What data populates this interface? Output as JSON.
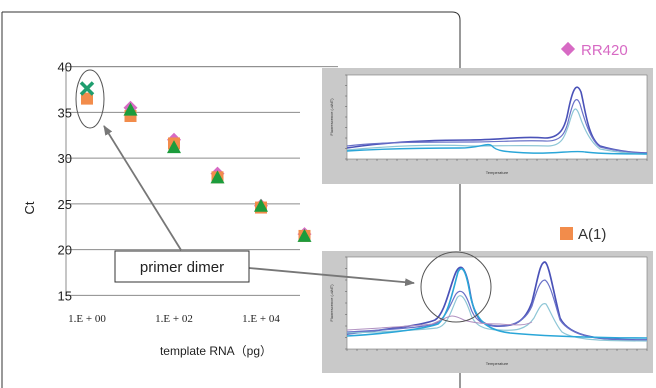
{
  "chart_data": [
    {
      "type": "scatter",
      "ylabel": "Ct",
      "xlabel": "template RNA（pg）",
      "x_ticks": [
        {
          "value": 0,
          "label": "1.E + 00"
        },
        {
          "value": 2,
          "label": "1.E + 02"
        },
        {
          "value": 4,
          "label": "1.E + 04"
        }
      ],
      "y_ticks": [
        15,
        20,
        25,
        30,
        35,
        40
      ],
      "xlim": [
        -0.4,
        5.0
      ],
      "ylim": [
        14.5,
        40.5
      ],
      "x_scale": "log",
      "grid": "horizontal",
      "series": [
        {
          "marker": "diamond",
          "color": "#d76ac4",
          "points": [
            [
              1,
              35.5
            ],
            [
              2,
              32.0
            ],
            [
              3,
              28.3
            ],
            [
              4,
              24.8
            ],
            [
              5,
              21.7
            ]
          ]
        },
        {
          "marker": "square",
          "color": "#f28c4b",
          "points": [
            [
              0,
              36.5
            ],
            [
              1,
              34.6
            ],
            [
              2,
              31.6
            ],
            [
              3,
              27.9
            ],
            [
              4,
              24.6
            ],
            [
              5,
              21.5
            ]
          ]
        },
        {
          "marker": "triangle",
          "color": "#1c9c3c",
          "points": [
            [
              1,
              35.3
            ],
            [
              2,
              31.2
            ],
            [
              3,
              27.9
            ],
            [
              4,
              24.8
            ],
            [
              5,
              21.5
            ]
          ]
        },
        {
          "marker": "x",
          "color": "#1f9e6f",
          "points": [
            [
              0,
              37.6
            ]
          ]
        }
      ]
    },
    {
      "type": "line",
      "title": "",
      "xlabel": "Temperature",
      "ylabel": "Fluorescence (-d/dT)",
      "peaks": [
        "single main peak"
      ],
      "series": [
        {
          "color": "#4a52b8"
        },
        {
          "color": "#6a72c8"
        },
        {
          "color": "#8ec6d6"
        },
        {
          "color": "#2aa6d8"
        }
      ]
    },
    {
      "type": "line",
      "title": "",
      "xlabel": "Temperature",
      "ylabel": "Fluorescence (-d/dT)",
      "peaks": [
        "primer-dimer peak",
        "main peak"
      ],
      "series": [
        {
          "color": "#4a52b8"
        },
        {
          "color": "#6a72c8"
        },
        {
          "color": "#8ec6d6"
        },
        {
          "color": "#2aa6d8"
        }
      ]
    }
  ],
  "legend": [
    {
      "label": "RR420",
      "marker": "diamond",
      "color": "#d76ac4"
    },
    {
      "label": "A(1)",
      "marker": "square",
      "color": "#f28c4b"
    }
  ],
  "callout": {
    "label": "primer dimer"
  },
  "colors": {
    "arrow": "#777777",
    "panel_bg": "#c9c9c9",
    "grid": "#8c8c8c"
  }
}
